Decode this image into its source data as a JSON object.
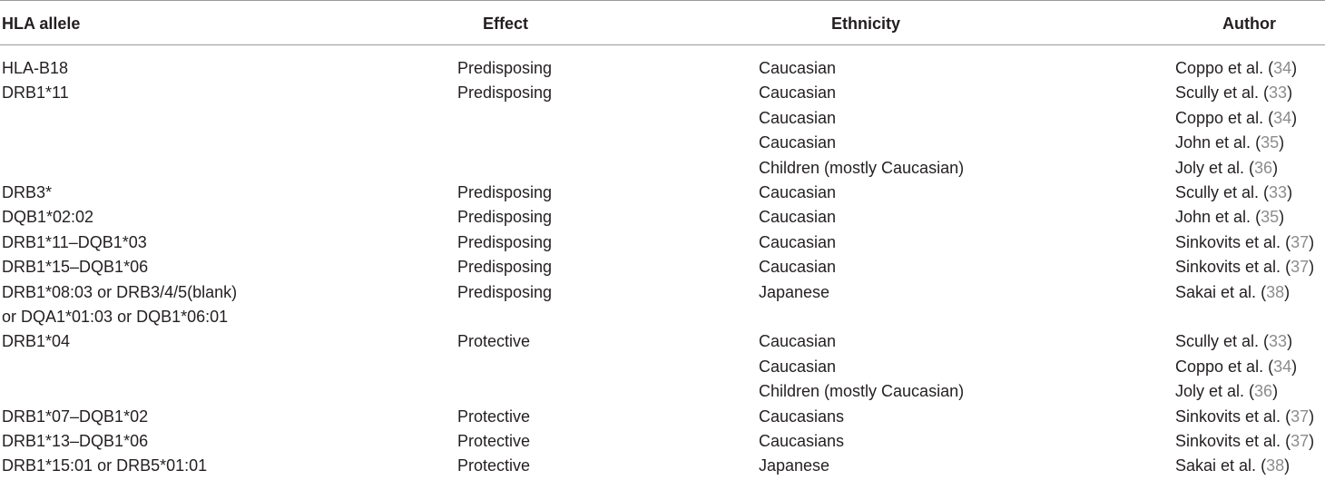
{
  "table": {
    "headers": {
      "allele": "HLA allele",
      "effect": "Effect",
      "ethnicity": "Ethnicity",
      "author": "Author"
    },
    "rows": [
      {
        "allele": "HLA-B18",
        "effect": "Predisposing",
        "ethnicity": "Caucasian",
        "author": "Coppo et al.",
        "ref": "34"
      },
      {
        "allele": "DRB1*11",
        "effect": "Predisposing",
        "ethnicity": "Caucasian",
        "author": "Scully et al.",
        "ref": "33"
      },
      {
        "allele": "",
        "effect": "",
        "ethnicity": "Caucasian",
        "author": "Coppo et al.",
        "ref": "34"
      },
      {
        "allele": "",
        "effect": "",
        "ethnicity": "Caucasian",
        "author": "John et al.",
        "ref": "35"
      },
      {
        "allele": "",
        "effect": "",
        "ethnicity": "Children (mostly Caucasian)",
        "author": "Joly et al.",
        "ref": "36"
      },
      {
        "allele": "DRB3*",
        "effect": "Predisposing",
        "ethnicity": "Caucasian",
        "author": "Scully et al.",
        "ref": "33"
      },
      {
        "allele": "DQB1*02:02",
        "effect": "Predisposing",
        "ethnicity": "Caucasian",
        "author": "John et al.",
        "ref": "35"
      },
      {
        "allele": "DRB1*11–DQB1*03",
        "effect": "Predisposing",
        "ethnicity": "Caucasian",
        "author": "Sinkovits et al.",
        "ref": "37"
      },
      {
        "allele": "DRB1*15–DQB1*06",
        "effect": "Predisposing",
        "ethnicity": "Caucasian",
        "author": "Sinkovits et al.",
        "ref": "37"
      },
      {
        "allele": "DRB1*08:03 or DRB3/4/5(blank)",
        "effect": "Predisposing",
        "ethnicity": "Japanese",
        "author": "Sakai et al.",
        "ref": "38"
      },
      {
        "allele": "or DQA1*01:03 or DQB1*06:01",
        "effect": "",
        "ethnicity": "",
        "author": "",
        "ref": ""
      },
      {
        "allele": "DRB1*04",
        "effect": "Protective",
        "ethnicity": "Caucasian",
        "author": "Scully et al.",
        "ref": "33"
      },
      {
        "allele": "",
        "effect": "",
        "ethnicity": "Caucasian",
        "author": "Coppo et al.",
        "ref": "34"
      },
      {
        "allele": "",
        "effect": "",
        "ethnicity": "Children (mostly Caucasian)",
        "author": "Joly et al.",
        "ref": "36"
      },
      {
        "allele": "DRB1*07–DQB1*02",
        "effect": "Protective",
        "ethnicity": "Caucasians",
        "author": "Sinkovits et al.",
        "ref": "37"
      },
      {
        "allele": "DRB1*13–DQB1*06",
        "effect": "Protective",
        "ethnicity": "Caucasians",
        "author": "Sinkovits et al.",
        "ref": "37"
      },
      {
        "allele": "DRB1*15:01 or DRB5*01:01",
        "effect": "Protective",
        "ethnicity": "Japanese",
        "author": "Sakai et al.",
        "ref": "38"
      }
    ]
  }
}
